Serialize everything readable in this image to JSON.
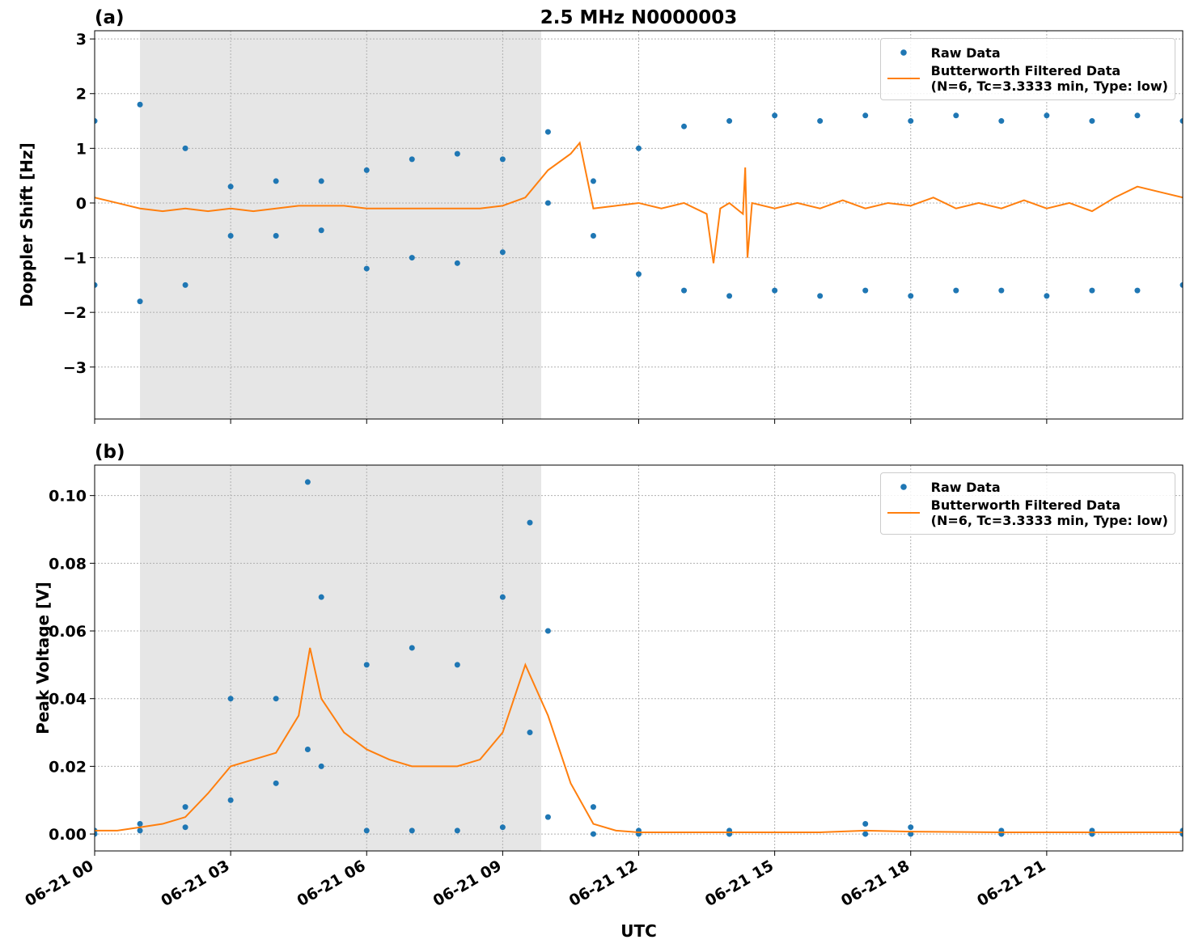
{
  "chart_data": [
    {
      "type": "scatter",
      "label": "(a)",
      "title": "2.5 MHz N0000003",
      "ylabel": "Doppler Shift [Hz]",
      "xlim": [
        0,
        24
      ],
      "xticks": [
        0,
        3,
        6,
        9,
        12,
        15,
        18,
        21
      ],
      "xtick_labels": false,
      "ylim": [
        -3.95,
        3.15
      ],
      "yticks": [
        {
          "value": -3,
          "label": "−3"
        },
        {
          "value": -2,
          "label": "−2"
        },
        {
          "value": -1,
          "label": "−1"
        },
        0,
        1,
        2,
        3
      ],
      "grid": true,
      "legend": "upper right",
      "shade": [
        1.0,
        9.85
      ],
      "shade_color": "#e6e6e6",
      "series": [
        {
          "name": "Raw Data",
          "mode": "markers",
          "color": "#1f77b4",
          "x": [
            0,
            0,
            1,
            1,
            2,
            2,
            3,
            3,
            4,
            4,
            5,
            5,
            6,
            6,
            7,
            7,
            8,
            8,
            9,
            9,
            10,
            10,
            11,
            11,
            12,
            12,
            13,
            13,
            14,
            14,
            15,
            15,
            16,
            16,
            17,
            17,
            18,
            18,
            19,
            19,
            20,
            20,
            21,
            21,
            22,
            22,
            23,
            23,
            24,
            24
          ],
          "values": [
            1.5,
            -1.5,
            1.8,
            -1.8,
            1.0,
            -1.5,
            0.3,
            -0.6,
            0.4,
            -0.6,
            0.4,
            -0.5,
            0.6,
            -1.2,
            0.8,
            -1.0,
            0.9,
            -1.1,
            0.8,
            -0.9,
            1.3,
            0.0,
            0.4,
            -0.6,
            1.0,
            -1.3,
            1.4,
            -1.6,
            1.5,
            -1.7,
            1.6,
            -1.6,
            1.5,
            -1.7,
            1.6,
            -1.6,
            1.5,
            -1.7,
            1.6,
            -1.6,
            1.5,
            -1.6,
            1.6,
            -1.7,
            1.5,
            -1.6,
            1.6,
            -1.6,
            1.5,
            -1.5
          ]
        },
        {
          "name": "Butterworth Filtered Data\n(N=6, Tc=3.3333 min, Type: low)",
          "mode": "line",
          "color": "#ff7f0e",
          "x": [
            0,
            0.5,
            1,
            1.5,
            2,
            2.5,
            3,
            3.5,
            4,
            4.5,
            5,
            5.5,
            6,
            6.5,
            7,
            7.5,
            8,
            8.5,
            9,
            9.5,
            10,
            10.5,
            10.7,
            11,
            11.5,
            12,
            12.5,
            13,
            13.5,
            13.65,
            13.8,
            14,
            14.3,
            14.35,
            14.4,
            14.5,
            15,
            15.5,
            16,
            16.5,
            17,
            17.5,
            18,
            18.5,
            19,
            19.5,
            20,
            20.5,
            21,
            21.5,
            22,
            22.5,
            23,
            23.5,
            24
          ],
          "values": [
            0.1,
            0.0,
            -0.1,
            -0.15,
            -0.1,
            -0.15,
            -0.1,
            -0.15,
            -0.1,
            -0.05,
            -0.05,
            -0.05,
            -0.1,
            -0.1,
            -0.1,
            -0.1,
            -0.1,
            -0.1,
            -0.05,
            0.1,
            0.6,
            0.9,
            1.1,
            -0.1,
            -0.05,
            0.0,
            -0.1,
            0.0,
            -0.2,
            -1.1,
            -0.1,
            0.0,
            -0.2,
            0.65,
            -1.0,
            0.0,
            -0.1,
            0.0,
            -0.1,
            0.05,
            -0.1,
            0.0,
            -0.05,
            0.1,
            -0.1,
            0.0,
            -0.1,
            0.05,
            -0.1,
            0.0,
            -0.15,
            0.1,
            0.3,
            0.2,
            0.1
          ]
        }
      ]
    },
    {
      "type": "scatter",
      "label": "(b)",
      "ylabel": "Peak Voltage [V]",
      "xlabel": "UTC",
      "xlim": [
        0,
        24
      ],
      "xticks": [
        {
          "value": 0,
          "label": "06-21 00"
        },
        {
          "value": 3,
          "label": "06-21 03"
        },
        {
          "value": 6,
          "label": "06-21 06"
        },
        {
          "value": 9,
          "label": "06-21 09"
        },
        {
          "value": 12,
          "label": "06-21 12"
        },
        {
          "value": 15,
          "label": "06-21 15"
        },
        {
          "value": 18,
          "label": "06-21 18"
        },
        {
          "value": 21,
          "label": "06-21 21"
        }
      ],
      "ylim": [
        -0.005,
        0.109
      ],
      "yticks": [
        {
          "value": 0,
          "label": "0.00"
        },
        0.02,
        0.04,
        0.06,
        0.08,
        {
          "value": 0.1,
          "label": "0.10"
        }
      ],
      "grid": true,
      "legend": "upper right",
      "shade": [
        1.0,
        9.85
      ],
      "shade_color": "#e6e6e6",
      "series": [
        {
          "name": "Raw Data",
          "mode": "markers",
          "color": "#1f77b4",
          "x": [
            0,
            0,
            1,
            1,
            2,
            2,
            3,
            3,
            4,
            4,
            4.7,
            4.7,
            5,
            5,
            6,
            6,
            7,
            7,
            8,
            8,
            9,
            9,
            9.6,
            9.6,
            10,
            10,
            11,
            11,
            12,
            12,
            14,
            14,
            17,
            17,
            18,
            18,
            20,
            20,
            22,
            22,
            24,
            24
          ],
          "values": [
            0.001,
            0.0,
            0.003,
            0.001,
            0.008,
            0.002,
            0.04,
            0.01,
            0.04,
            0.015,
            0.104,
            0.025,
            0.07,
            0.02,
            0.05,
            0.001,
            0.055,
            0.001,
            0.05,
            0.001,
            0.07,
            0.002,
            0.092,
            0.03,
            0.06,
            0.005,
            0.008,
            0.0,
            0.001,
            0.0,
            0.001,
            0.0,
            0.003,
            0.0,
            0.002,
            0.0,
            0.001,
            0.0,
            0.001,
            0.0,
            0.001,
            0.0
          ]
        },
        {
          "name": "Butterworth Filtered Data\n(N=6, Tc=3.3333 min, Type: low)",
          "mode": "line",
          "color": "#ff7f0e",
          "x": [
            0,
            0.5,
            1,
            1.5,
            2,
            2.5,
            3,
            3.5,
            4,
            4.5,
            4.75,
            5,
            5.5,
            6,
            6.5,
            7,
            7.5,
            8,
            8.5,
            9,
            9.5,
            10,
            10.5,
            11,
            11.5,
            12,
            14,
            16,
            17,
            18,
            20,
            22,
            24
          ],
          "values": [
            0.001,
            0.001,
            0.002,
            0.003,
            0.005,
            0.012,
            0.02,
            0.022,
            0.024,
            0.035,
            0.055,
            0.04,
            0.03,
            0.025,
            0.022,
            0.02,
            0.02,
            0.02,
            0.022,
            0.03,
            0.05,
            0.035,
            0.015,
            0.003,
            0.001,
            0.0005,
            0.0005,
            0.0005,
            0.001,
            0.0007,
            0.0005,
            0.0005,
            0.0005
          ]
        }
      ]
    }
  ]
}
